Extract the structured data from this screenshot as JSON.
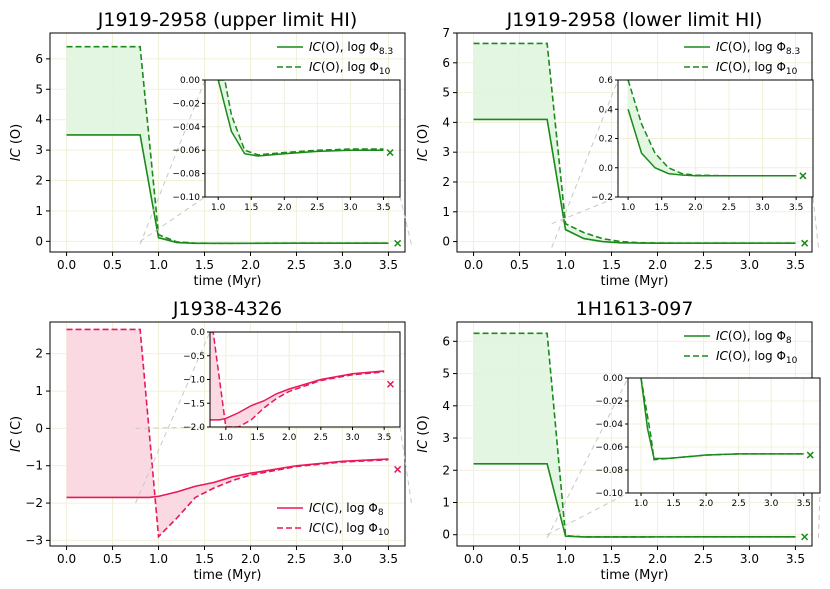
{
  "figure": {
    "title": ""
  },
  "chart_data": [
    {
      "type": "line",
      "title": "J1919-2958 (upper limit HI)",
      "xlabel": "time (Myr)",
      "ylabel_italic": "IC",
      "ylabel_rest": " (O)",
      "xlim": [
        -0.18,
        3.68
      ],
      "ylim": [
        -0.35,
        6.85
      ],
      "xticks": [
        0.0,
        0.5,
        1.0,
        1.5,
        2.0,
        2.5,
        3.0,
        3.5
      ],
      "xtick_labels": [
        "0.0",
        "0.5",
        "1.0",
        "1.5",
        "2.0",
        "2.5",
        "3.0",
        "3.5"
      ],
      "yticks": [
        0,
        1,
        2,
        3,
        4,
        5,
        6
      ],
      "ytick_labels": [
        "0",
        "1",
        "2",
        "3",
        "4",
        "5",
        "6"
      ],
      "grid": true,
      "legend_position": "top-right",
      "color": "#1a8a1a",
      "fill_color": "#dff5df",
      "series": [
        {
          "name": "IC(O), log Φ8.3",
          "label_italic": "IC",
          "label_rest": "(O), log Φ",
          "label_sub": "8.3",
          "style": "solid",
          "x": [
            0.0,
            0.8,
            1.0,
            1.2,
            1.4,
            1.6,
            1.8,
            2.0,
            2.5,
            3.0,
            3.5
          ],
          "y": [
            3.5,
            3.5,
            0.12,
            -0.04,
            -0.063,
            -0.065,
            -0.064,
            -0.063,
            -0.061,
            -0.06,
            -0.06
          ]
        },
        {
          "name": "IC(O), log Φ10",
          "label_italic": "IC",
          "label_rest": "(O), log Φ",
          "label_sub": "10",
          "style": "dashed",
          "x": [
            0.0,
            0.8,
            1.0,
            1.2,
            1.4,
            1.6,
            1.8,
            2.0,
            2.5,
            3.0,
            3.5
          ],
          "y": [
            6.4,
            6.4,
            0.22,
            -0.02,
            -0.058,
            -0.064,
            -0.063,
            -0.062,
            -0.06,
            -0.059,
            -0.059
          ]
        }
      ],
      "endpoint": {
        "x": 3.6,
        "y": -0.062
      },
      "inset": {
        "xlim": [
          0.8,
          3.75
        ],
        "ylim": [
          -0.1,
          0.0
        ],
        "xticks": [
          1.0,
          1.5,
          2.0,
          2.5,
          3.0,
          3.5
        ],
        "xtick_labels": [
          "1.0",
          "1.5",
          "2.0",
          "2.5",
          "3.0",
          "3.5"
        ],
        "yticks": [
          -0.1,
          -0.08,
          -0.06,
          -0.04,
          -0.02,
          0.0
        ],
        "ytick_labels": [
          "−0.10",
          "−0.08",
          "−0.06",
          "−0.04",
          "−0.02",
          "0.00"
        ],
        "series": [
          {
            "x": [
              1.0,
              1.2,
              1.4,
              1.6,
              1.8,
              2.0,
              2.5,
              3.0,
              3.5
            ],
            "y": [
              0.0,
              -0.044,
              -0.063,
              -0.065,
              -0.064,
              -0.063,
              -0.061,
              -0.06,
              -0.06
            ]
          },
          {
            "x": [
              1.0,
              1.1,
              1.2,
              1.4,
              1.6,
              1.8,
              2.0,
              2.5,
              3.0,
              3.5
            ],
            "y": [
              0.0,
              0.0,
              -0.03,
              -0.06,
              -0.064,
              -0.063,
              -0.062,
              -0.06,
              -0.059,
              -0.059
            ]
          }
        ],
        "endpoint": {
          "x": 3.6,
          "y": -0.062
        }
      }
    },
    {
      "type": "line",
      "title": "J1919-2958 (lower limit HI)",
      "xlabel": "time (Myr)",
      "ylabel_italic": "IC",
      "ylabel_rest": " (O)",
      "xlim": [
        -0.18,
        3.68
      ],
      "ylim": [
        -0.35,
        7.0
      ],
      "xticks": [
        0.0,
        0.5,
        1.0,
        1.5,
        2.0,
        2.5,
        3.0,
        3.5
      ],
      "xtick_labels": [
        "0.0",
        "0.5",
        "1.0",
        "1.5",
        "2.0",
        "2.5",
        "3.0",
        "3.5"
      ],
      "yticks": [
        0,
        1,
        2,
        3,
        4,
        5,
        6,
        7
      ],
      "ytick_labels": [
        "0",
        "1",
        "2",
        "3",
        "4",
        "5",
        "6",
        "7"
      ],
      "grid": true,
      "legend_position": "top-right",
      "color": "#1a8a1a",
      "fill_color": "#dff5df",
      "series": [
        {
          "name": "IC(O), log Φ8.3",
          "label_italic": "IC",
          "label_rest": "(O), log Φ",
          "label_sub": "8.3",
          "style": "solid",
          "x": [
            0.0,
            0.8,
            1.0,
            1.2,
            1.4,
            1.6,
            1.8,
            2.0,
            2.5,
            3.0,
            3.5
          ],
          "y": [
            4.1,
            4.1,
            0.4,
            0.1,
            0.0,
            -0.04,
            -0.05,
            -0.055,
            -0.055,
            -0.055,
            -0.055
          ]
        },
        {
          "name": "IC(O), log Φ10",
          "label_italic": "IC",
          "label_rest": "(O), log Φ",
          "label_sub": "10",
          "style": "dashed",
          "x": [
            0.0,
            0.8,
            1.0,
            1.2,
            1.4,
            1.6,
            1.8,
            2.0,
            2.5,
            3.0,
            3.5
          ],
          "y": [
            6.65,
            6.65,
            0.6,
            0.3,
            0.1,
            0.0,
            -0.04,
            -0.05,
            -0.055,
            -0.055,
            -0.055
          ]
        }
      ],
      "endpoint": {
        "x": 3.6,
        "y": -0.055
      },
      "inset": {
        "xlim": [
          0.85,
          3.75
        ],
        "ylim": [
          -0.2,
          0.6
        ],
        "xticks": [
          1.0,
          1.5,
          2.0,
          2.5,
          3.0,
          3.5
        ],
        "xtick_labels": [
          "1.0",
          "1.5",
          "2.0",
          "2.5",
          "3.0",
          "3.5"
        ],
        "yticks": [
          -0.2,
          0.0,
          0.2,
          0.4,
          0.6
        ],
        "ytick_labels": [
          "−0.2",
          "0.0",
          "0.2",
          "0.4",
          "0.6"
        ],
        "series": [
          {
            "x": [
              1.0,
              1.2,
              1.4,
              1.6,
              1.8,
              2.0,
              2.5,
              3.0,
              3.5
            ],
            "y": [
              0.4,
              0.1,
              0.0,
              -0.04,
              -0.05,
              -0.055,
              -0.055,
              -0.055,
              -0.055
            ]
          },
          {
            "x": [
              1.0,
              1.2,
              1.4,
              1.6,
              1.8,
              2.0,
              2.5,
              3.0,
              3.5
            ],
            "y": [
              0.6,
              0.3,
              0.1,
              0.0,
              -0.04,
              -0.05,
              -0.055,
              -0.055,
              -0.055
            ]
          }
        ],
        "endpoint": {
          "x": 3.6,
          "y": -0.055
        }
      }
    },
    {
      "type": "line",
      "title": "J1938-4326",
      "xlabel": "time (Myr)",
      "ylabel_italic": "IC",
      "ylabel_rest": " (C)",
      "xlim": [
        -0.18,
        3.68
      ],
      "ylim": [
        -3.15,
        2.85
      ],
      "xticks": [
        0.0,
        0.5,
        1.0,
        1.5,
        2.0,
        2.5,
        3.0,
        3.5
      ],
      "xtick_labels": [
        "0.0",
        "0.5",
        "1.0",
        "1.5",
        "2.0",
        "2.5",
        "3.0",
        "3.5"
      ],
      "yticks": [
        -3,
        -2,
        -1,
        0,
        1,
        2
      ],
      "ytick_labels": [
        "−3",
        "−2",
        "−1",
        "0",
        "1",
        "2"
      ],
      "grid": true,
      "legend_position": "lower-right",
      "color": "#e8185a",
      "fill_color": "#fbd5df",
      "series": [
        {
          "name": "IC(C), log Φ8",
          "label_italic": "IC",
          "label_rest": "(C), log Φ",
          "label_sub": "8",
          "style": "solid",
          "x": [
            0.0,
            0.9,
            1.0,
            1.2,
            1.4,
            1.6,
            1.8,
            2.0,
            2.5,
            3.0,
            3.5
          ],
          "y": [
            -1.85,
            -1.85,
            -1.82,
            -1.7,
            -1.55,
            -1.45,
            -1.3,
            -1.2,
            -1.0,
            -0.88,
            -0.82
          ]
        },
        {
          "name": "IC(C), log Φ10",
          "label_italic": "IC",
          "label_rest": "(C), log Φ",
          "label_sub": "10",
          "style": "dashed",
          "x": [
            0.0,
            0.8,
            1.0,
            1.2,
            1.4,
            1.6,
            1.8,
            2.0,
            2.5,
            3.0,
            3.5
          ],
          "y": [
            2.65,
            2.65,
            -2.9,
            -2.4,
            -1.85,
            -1.6,
            -1.4,
            -1.25,
            -1.02,
            -0.9,
            -0.84
          ]
        }
      ],
      "endpoint": {
        "x": 3.6,
        "y": -1.1
      },
      "inset": {
        "xlim": [
          0.75,
          3.75
        ],
        "ylim": [
          -2.0,
          0.0
        ],
        "xticks": [
          1.0,
          1.5,
          2.0,
          2.5,
          3.0,
          3.5
        ],
        "xtick_labels": [
          "1.0",
          "1.5",
          "2.0",
          "2.5",
          "3.0",
          "3.5"
        ],
        "yticks": [
          -2.0,
          -1.5,
          -1.0,
          -0.5,
          0.0
        ],
        "ytick_labels": [
          "−2.0",
          "−1.5",
          "−1.0",
          "−0.5",
          "0.0"
        ],
        "series": [
          {
            "x": [
              0.75,
              0.9,
              1.0,
              1.2,
              1.4,
              1.6,
              1.8,
              2.0,
              2.5,
              3.0,
              3.5
            ],
            "y": [
              -1.85,
              -1.85,
              -1.82,
              -1.7,
              -1.55,
              -1.45,
              -1.3,
              -1.2,
              -1.0,
              -0.88,
              -0.82
            ]
          },
          {
            "x": [
              0.75,
              0.8,
              0.9,
              1.0,
              1.2,
              1.4,
              1.6,
              1.8,
              2.0,
              2.5,
              3.0,
              3.5
            ],
            "y": [
              0.0,
              0.0,
              -1.0,
              -2.0,
              -2.0,
              -1.85,
              -1.6,
              -1.4,
              -1.25,
              -1.02,
              -0.9,
              -0.84
            ]
          }
        ],
        "endpoint": {
          "x": 3.6,
          "y": -1.1
        }
      }
    },
    {
      "type": "line",
      "title": "1H1613-097",
      "xlabel": "time (Myr)",
      "ylabel_italic": "IC",
      "ylabel_rest": " (O)",
      "xlim": [
        -0.18,
        3.68
      ],
      "ylim": [
        -0.35,
        6.6
      ],
      "xticks": [
        0.0,
        0.5,
        1.0,
        1.5,
        2.0,
        2.5,
        3.0,
        3.5
      ],
      "xtick_labels": [
        "0.0",
        "0.5",
        "1.0",
        "1.5",
        "2.0",
        "2.5",
        "3.0",
        "3.5"
      ],
      "yticks": [
        0,
        1,
        2,
        3,
        4,
        5,
        6
      ],
      "ytick_labels": [
        "0",
        "1",
        "2",
        "3",
        "4",
        "5",
        "6"
      ],
      "grid": true,
      "legend_position": "top-right",
      "color": "#1a8a1a",
      "fill_color": "#dff5df",
      "series": [
        {
          "name": "IC(O), log Φ8",
          "label_italic": "IC",
          "label_rest": "(O), log Φ",
          "label_sub": "8",
          "style": "solid",
          "x": [
            0.0,
            0.8,
            1.0,
            1.2,
            1.4,
            1.6,
            1.8,
            2.0,
            2.5,
            3.0,
            3.5
          ],
          "y": [
            2.2,
            2.2,
            -0.044,
            -0.07,
            -0.07,
            -0.069,
            -0.068,
            -0.067,
            -0.066,
            -0.066,
            -0.066
          ]
        },
        {
          "name": "IC(O), log Φ10",
          "label_italic": "IC",
          "label_rest": "(O), log Φ",
          "label_sub": "10",
          "style": "dashed",
          "x": [
            0.0,
            0.8,
            1.0,
            1.2,
            1.4,
            1.6,
            1.8,
            2.0,
            2.5,
            3.0,
            3.5
          ],
          "y": [
            6.25,
            6.25,
            -0.03,
            -0.07,
            -0.07,
            -0.069,
            -0.068,
            -0.067,
            -0.066,
            -0.066,
            -0.066
          ]
        }
      ],
      "endpoint": {
        "x": 3.6,
        "y": -0.067
      },
      "inset": {
        "xlim": [
          0.8,
          3.75
        ],
        "ylim": [
          -0.1,
          0.0
        ],
        "xticks": [
          1.0,
          1.5,
          2.0,
          2.5,
          3.0,
          3.5
        ],
        "xtick_labels": [
          "1.0",
          "1.5",
          "2.0",
          "2.5",
          "3.0",
          "3.5"
        ],
        "yticks": [
          -0.1,
          -0.08,
          -0.06,
          -0.04,
          -0.02,
          0.0
        ],
        "ytick_labels": [
          "−0.10",
          "−0.08",
          "−0.06",
          "−0.04",
          "−0.02",
          "0.00"
        ],
        "series": [
          {
            "x": [
              1.0,
              1.1,
              1.2,
              1.4,
              1.6,
              1.8,
              2.0,
              2.5,
              3.0,
              3.5
            ],
            "y": [
              0.0,
              -0.044,
              -0.07,
              -0.07,
              -0.069,
              -0.068,
              -0.067,
              -0.066,
              -0.066,
              -0.066
            ]
          },
          {
            "x": [
              1.0,
              1.15,
              1.2,
              1.4,
              1.6,
              1.8,
              2.0,
              2.5,
              3.0,
              3.5
            ],
            "y": [
              0.0,
              -0.05,
              -0.071,
              -0.07,
              -0.069,
              -0.068,
              -0.067,
              -0.066,
              -0.066,
              -0.066
            ]
          }
        ],
        "endpoint": {
          "x": 3.6,
          "y": -0.067
        }
      }
    }
  ]
}
